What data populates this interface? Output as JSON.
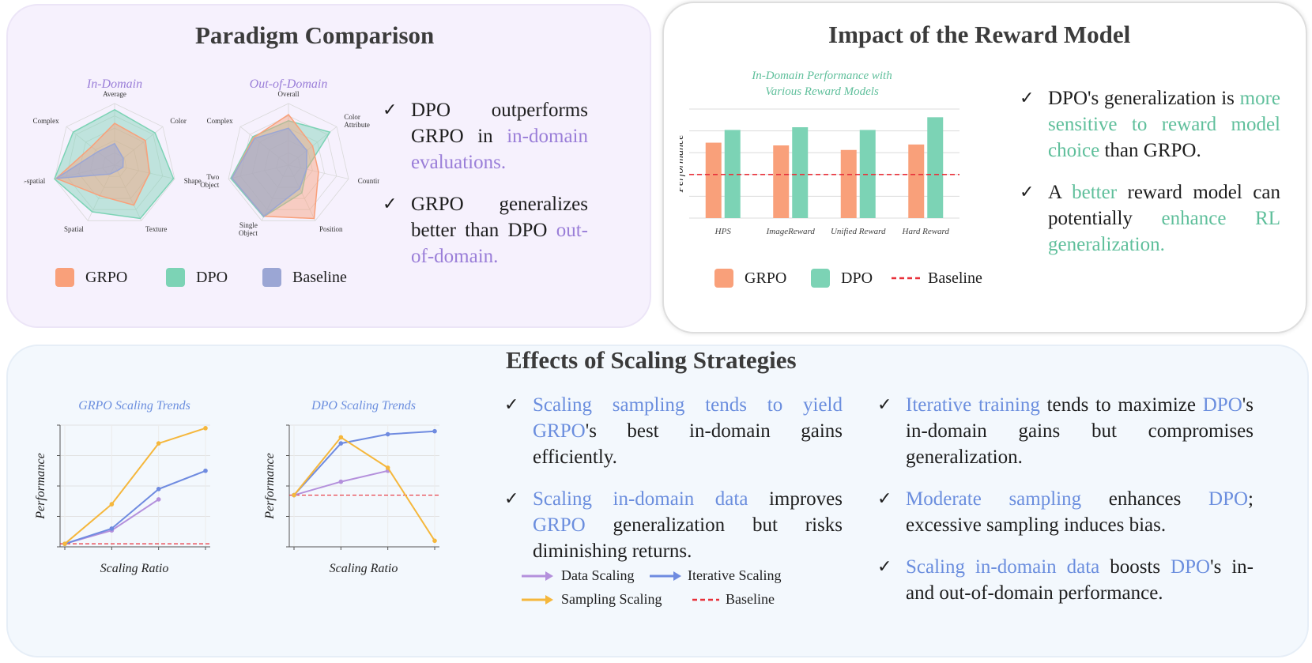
{
  "colors": {
    "grpo": "#f9a07a",
    "dpo": "#7cd3b5",
    "baseline": "#9ba6d4",
    "purple_hl": "#9a7ed8",
    "green_hl": "#5fbf9b",
    "blue_hl": "#6b8ede",
    "data_scaling": "#b490dc",
    "iterative_scaling": "#6f8be0",
    "sampling_scaling": "#f5b73c",
    "baseline_line": "#e8313a"
  },
  "paradigm": {
    "title": "Paradigm Comparison",
    "bullets": [
      {
        "t1": "DPO outperforms GRPO in ",
        "h1": "in-domain evaluations."
      },
      {
        "t1": "GRPO generalizes better than DPO ",
        "h1": "out-of-domain."
      }
    ],
    "legend": {
      "grpo": "GRPO",
      "dpo": "DPO",
      "baseline": "Baseline"
    }
  },
  "reward": {
    "title": "Impact of the Reward Model",
    "bullets": [
      {
        "t1": "DPO's generalization is ",
        "h1": "more sensitive to reward model choice",
        "t2": " than GRPO."
      },
      {
        "t1": "A ",
        "h1": "better",
        "t2": " reward model can potentially ",
        "h2": "enhance RL generalization."
      }
    ],
    "legend": {
      "grpo": "GRPO",
      "dpo": "DPO",
      "baseline": "Baseline"
    }
  },
  "scaling": {
    "title": "Effects of Scaling Strategies",
    "bullets_left": [
      {
        "h1": "Scaling sampling tends to yield GRPO",
        "t1": "'s best in-domain gains efficiently."
      },
      {
        "h1": "Scaling in-domain data",
        "t1": " improves ",
        "h2": "GRPO",
        "t2": " generalization but risks diminishing returns."
      }
    ],
    "bullets_right": [
      {
        "h1": "Iterative training",
        "t1": " tends to maximize ",
        "h2": "DPO",
        "t2": "'s in-domain gains but compromises generalization."
      },
      {
        "h1": "Moderate sampling",
        "t1": " enhances ",
        "h2": "DPO",
        "t2": "; excessive sampling induces bias."
      },
      {
        "h1": "Scaling in-domain data",
        "t1": " boosts ",
        "h2": "DPO",
        "t2": "'s in- and out-of-domain performance."
      }
    ],
    "legend": {
      "data": "Data Scaling",
      "iterative": "Iterative Scaling",
      "sampling": "Sampling Scaling",
      "baseline": "Baseline"
    }
  },
  "chart_data": [
    {
      "type": "radar",
      "title": "In-Domain",
      "axes": [
        "Average",
        "Color",
        "Shape",
        "Texture",
        "Spatial",
        "Non-spatial",
        "Complex"
      ],
      "rmax": 1.0,
      "series": [
        {
          "name": "GRPO",
          "values": [
            0.68,
            0.64,
            0.58,
            0.72,
            0.55,
            0.97,
            0.48
          ]
        },
        {
          "name": "DPO",
          "values": [
            0.9,
            0.84,
            0.98,
            0.96,
            0.84,
            1.0,
            0.86
          ]
        },
        {
          "name": "Baseline",
          "values": [
            0.35,
            0.18,
            0.14,
            0.1,
            0.16,
            0.97,
            0.35
          ]
        }
      ]
    },
    {
      "type": "radar",
      "title": "Out-of-Domain",
      "axes": [
        "Overall",
        "Color Attribute",
        "Counting",
        "Position",
        "Single Object",
        "Two Object",
        "Complex"
      ],
      "rmax": 1.0,
      "series": [
        {
          "name": "GRPO",
          "values": [
            0.82,
            0.5,
            0.5,
            0.96,
            0.92,
            0.94,
            0.72
          ]
        },
        {
          "name": "DPO",
          "values": [
            0.72,
            0.86,
            0.3,
            0.5,
            0.93,
            0.96,
            0.74
          ]
        },
        {
          "name": "Baseline",
          "values": [
            0.6,
            0.38,
            0.3,
            0.42,
            0.92,
            0.94,
            0.7
          ]
        }
      ]
    },
    {
      "type": "bar",
      "title": "In-Domain Performance with Various Reward Models",
      "categories": [
        "HPS",
        "ImageReward",
        "Unified Reward",
        "Hard Reward"
      ],
      "series": [
        {
          "name": "GRPO",
          "values": [
            0.415,
            0.4,
            0.375,
            0.405
          ]
        },
        {
          "name": "DPO",
          "values": [
            0.485,
            0.5,
            0.485,
            0.555
          ]
        }
      ],
      "baseline": 0.24,
      "ylim": [
        0,
        0.6
      ],
      "ylabel": "Performance",
      "xlabel": ""
    },
    {
      "type": "line",
      "title": "GRPO Scaling Trends",
      "x": [
        0,
        1,
        2,
        3
      ],
      "series": [
        {
          "name": "Data Scaling",
          "values": [
            0.05,
            0.27,
            0.78,
            null
          ]
        },
        {
          "name": "Iterative Scaling",
          "values": [
            0.05,
            0.3,
            0.95,
            1.25
          ]
        },
        {
          "name": "Sampling Scaling",
          "values": [
            0.05,
            0.7,
            1.7,
            1.95
          ]
        }
      ],
      "baseline": 0.05,
      "ylim": [
        0,
        2.0
      ],
      "xlabel": "Scaling Ratio",
      "ylabel": "Performance"
    },
    {
      "type": "line",
      "title": "DPO Scaling Trends",
      "x": [
        0,
        1,
        2,
        3
      ],
      "series": [
        {
          "name": "Data Scaling",
          "values": [
            0.85,
            1.07,
            1.25,
            null
          ]
        },
        {
          "name": "Iterative Scaling",
          "values": [
            0.85,
            1.7,
            1.85,
            1.9
          ]
        },
        {
          "name": "Sampling Scaling",
          "values": [
            0.85,
            1.8,
            1.3,
            0.1
          ]
        }
      ],
      "baseline": 0.85,
      "ylim": [
        0,
        2.0
      ],
      "xlabel": "Scaling Ratio",
      "ylabel": "Performance"
    }
  ]
}
